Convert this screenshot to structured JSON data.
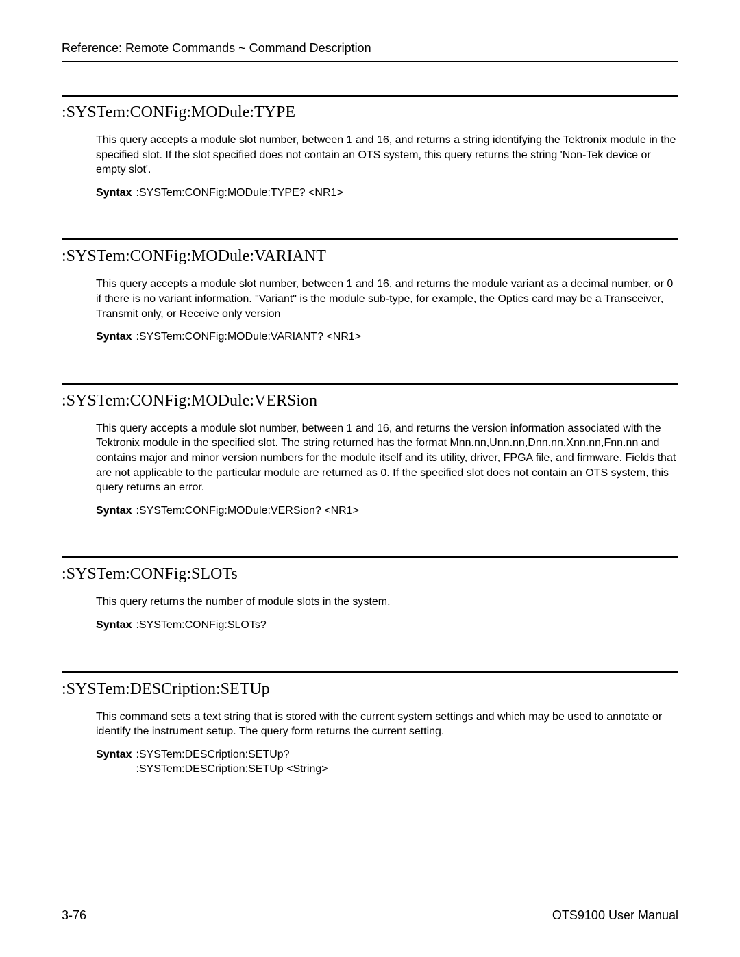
{
  "header": {
    "breadcrumb": "Reference: Remote Commands ~ Command Description"
  },
  "sections": [
    {
      "title": ":SYSTem:CONFig:MODule:TYPE",
      "description": "This query accepts a module slot number, between 1 and 16, and returns a string identifying the Tektronix module in the specified slot. If the slot specified does not contain an OTS system, this query returns the string 'Non-Tek device or empty slot'.",
      "syntax_label": "Syntax",
      "syntax_lines": [
        ":SYSTem:CONFig:MODule:TYPE? <NR1>"
      ]
    },
    {
      "title": ":SYSTem:CONFig:MODule:VARIANT",
      "description": "This query accepts a module slot number, between 1 and 16, and returns the module variant as a decimal number, or 0 if there is no variant information.  \"Variant\" is the module sub-type, for example, the Optics card may be a Transceiver, Transmit only, or Receive only version",
      "syntax_label": "Syntax",
      "syntax_lines": [
        ":SYSTem:CONFig:MODule:VARIANT? <NR1>"
      ]
    },
    {
      "title": ":SYSTem:CONFig:MODule:VERSion",
      "description": "This query accepts a module slot number, between 1 and 16, and returns the version information associated with the Tektronix module in the specified slot. The string returned has the format Mnn.nn,Unn.nn,Dnn.nn,Xnn.nn,Fnn.nn and contains major and minor version numbers for the module itself and its utility, driver, FPGA file, and firmware. Fields that are not applicable to the particular module are returned as 0. If the specified slot does not contain an OTS system, this query returns an error.",
      "syntax_label": "Syntax",
      "syntax_lines": [
        ":SYSTem:CONFig:MODule:VERSion? <NR1>"
      ]
    },
    {
      "title": ":SYSTem:CONFig:SLOTs",
      "description": "This query returns the number of module slots in the system.",
      "syntax_label": "Syntax",
      "syntax_lines": [
        ":SYSTem:CONFig:SLOTs?"
      ]
    },
    {
      "title": ":SYSTem:DESCription:SETUp",
      "description": "This command sets a text string that is stored with the current system settings and which may be used to annotate or identify the instrument setup. The query form returns the current setting.",
      "syntax_label": "Syntax",
      "syntax_lines": [
        ":SYSTem:DESCription:SETUp?",
        ":SYSTem:DESCription:SETUp <String>"
      ]
    }
  ],
  "footer": {
    "page_number": "3-76",
    "manual_title": "OTS9100 User Manual"
  }
}
